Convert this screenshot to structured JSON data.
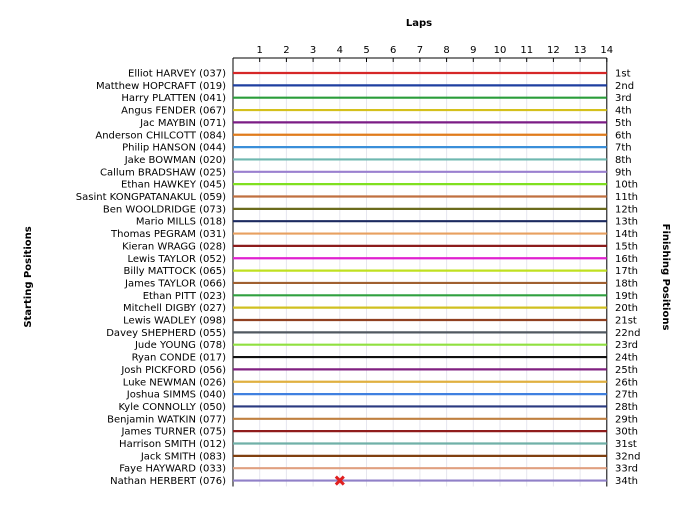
{
  "chart_data": {
    "type": "line",
    "title": "",
    "xlabel": "Laps",
    "ylabel_left": "Starting Positions",
    "ylabel_right": "Finishing Positions",
    "laps": [
      1,
      2,
      3,
      4,
      5,
      6,
      7,
      8,
      9,
      10,
      11,
      12,
      13,
      14
    ],
    "finishing_labels": [
      "1st",
      "2nd",
      "3rd",
      "4th",
      "5th",
      "6th",
      "7th",
      "8th",
      "9th",
      "10th",
      "11th",
      "12th",
      "13th",
      "14th",
      "15th",
      "16th",
      "17th",
      "18th",
      "19th",
      "20th",
      "21st",
      "22nd",
      "23rd",
      "24th",
      "25th",
      "26th",
      "27th",
      "28th",
      "29th",
      "30th",
      "31st",
      "32nd",
      "33rd",
      "34th"
    ],
    "retirement_marker": {
      "lap": 4,
      "position": 34
    },
    "series": [
      {
        "name": "Elliot HARVEY (037)",
        "color": "#d62728",
        "positions": [
          1,
          1,
          1,
          1,
          1,
          1,
          1,
          1,
          1,
          1,
          1,
          1,
          1,
          1,
          1
        ]
      },
      {
        "name": "Matthew HOPCRAFT (019)",
        "color": "#1f3fa0",
        "positions": [
          2,
          2,
          2,
          2,
          2,
          2,
          2,
          2,
          2,
          2,
          2,
          2,
          2,
          2,
          2
        ]
      },
      {
        "name": "Harry PLATTEN (041)",
        "color": "#2a9d3a",
        "positions": [
          3,
          3,
          3,
          3,
          3,
          3,
          3,
          3,
          3,
          3,
          3,
          3,
          3,
          3,
          3
        ]
      },
      {
        "name": "Angus FENDER (067)",
        "color": "#d4c01c",
        "positions": [
          4,
          4,
          4,
          4,
          4,
          4,
          4,
          4,
          4,
          4,
          4,
          4,
          4,
          4,
          4
        ]
      },
      {
        "name": "Jac MAYBIN (071)",
        "color": "#7b1c85",
        "positions": [
          5,
          5,
          5,
          5,
          5,
          5,
          5,
          5,
          5,
          5,
          5,
          5,
          5,
          5,
          5
        ]
      },
      {
        "name": "Anderson CHILCOTT (084)",
        "color": "#e07b1c",
        "positions": [
          6,
          6,
          6,
          6,
          6,
          6,
          6,
          6,
          6,
          6,
          6,
          6,
          6,
          6,
          6
        ]
      },
      {
        "name": "Philip HANSON (044)",
        "color": "#3a8fd9",
        "positions": [
          7,
          7,
          7,
          7,
          7,
          7,
          7,
          7,
          7,
          7,
          7,
          7,
          7,
          7,
          7
        ]
      },
      {
        "name": "Jake BOWMAN (020)",
        "color": "#6fb8b0",
        "positions": [
          8,
          8,
          8,
          8,
          8,
          8,
          8,
          8,
          8,
          8,
          8,
          8,
          8,
          8,
          8
        ]
      },
      {
        "name": "Callum BRADSHAW (025)",
        "color": "#9a7fcf",
        "positions": [
          9,
          9,
          9,
          9,
          9,
          9,
          9,
          9,
          9,
          9,
          9,
          9,
          9,
          9,
          9
        ]
      },
      {
        "name": "Ethan HAWKEY (045)",
        "color": "#80e020",
        "positions": [
          10,
          10,
          10,
          10,
          10,
          10,
          10,
          10,
          10,
          10,
          10,
          10,
          10,
          10,
          10
        ]
      },
      {
        "name": "Sasint KONGPATANAKUL (059)",
        "color": "#c07040",
        "positions": [
          11,
          11,
          11,
          11,
          11,
          11,
          11,
          11,
          11,
          11,
          11,
          11,
          11,
          11,
          11
        ]
      },
      {
        "name": "Ben WOOLDRIDGE (073)",
        "color": "#6b6b1c",
        "positions": [
          12,
          12,
          12,
          12,
          12,
          12,
          12,
          12,
          12,
          12,
          12,
          12,
          12,
          12,
          12
        ]
      },
      {
        "name": "Mario MILLS (018)",
        "color": "#1c2a60",
        "positions": [
          13,
          13,
          13,
          13,
          13,
          13,
          13,
          13,
          13,
          13,
          13,
          13,
          13,
          13,
          13
        ]
      },
      {
        "name": "Thomas PEGRAM (031)",
        "color": "#e8a060",
        "positions": [
          14,
          14,
          14,
          14,
          14,
          14,
          14,
          14,
          14,
          14,
          14,
          14,
          14,
          14,
          14
        ]
      },
      {
        "name": "Kieran WRAGG (028)",
        "color": "#8c1c1c",
        "positions": [
          15,
          15,
          15,
          15,
          15,
          15,
          15,
          15,
          15,
          15,
          15,
          15,
          15,
          15,
          15
        ]
      },
      {
        "name": "Lewis TAYLOR (052)",
        "color": "#e020d0",
        "positions": [
          16,
          16,
          16,
          16,
          16,
          16,
          16,
          16,
          16,
          16,
          16,
          16,
          16,
          16,
          16
        ]
      },
      {
        "name": "Billy MATTOCK (065)",
        "color": "#c0e020",
        "positions": [
          17,
          17,
          17,
          17,
          17,
          17,
          17,
          17,
          17,
          17,
          17,
          17,
          17,
          17,
          17
        ]
      },
      {
        "name": "James TAYLOR (066)",
        "color": "#a06030",
        "positions": [
          18,
          18,
          18,
          18,
          18,
          18,
          18,
          18,
          18,
          18,
          18,
          18,
          18,
          18,
          18
        ]
      },
      {
        "name": "Ethan PITT (023)",
        "color": "#30a040",
        "positions": [
          19,
          19,
          19,
          19,
          19,
          19,
          19,
          19,
          19,
          19,
          19,
          19,
          19,
          19,
          19
        ]
      },
      {
        "name": "Mitchell DIGBY (027)",
        "color": "#d0c020",
        "positions": [
          20,
          20,
          20,
          20,
          20,
          20,
          20,
          20,
          20,
          20,
          20,
          20,
          20,
          20,
          20
        ]
      },
      {
        "name": "Lewis WADLEY (098)",
        "color": "#904020",
        "positions": [
          21,
          21,
          21,
          21,
          21,
          21,
          21,
          21,
          21,
          21,
          21,
          21,
          21,
          21,
          21
        ]
      },
      {
        "name": "Davey SHEPHERD (055)",
        "color": "#505860",
        "positions": [
          22,
          22,
          22,
          22,
          22,
          22,
          22,
          22,
          22,
          22,
          22,
          22,
          22,
          22,
          22
        ]
      },
      {
        "name": "Jude YOUNG (078)",
        "color": "#90e040",
        "positions": [
          23,
          23,
          23,
          23,
          23,
          23,
          23,
          23,
          23,
          23,
          23,
          23,
          23,
          23,
          23
        ]
      },
      {
        "name": "Ryan CONDE (017)",
        "color": "#101010",
        "positions": [
          24,
          24,
          24,
          24,
          24,
          24,
          24,
          24,
          24,
          24,
          24,
          24,
          24,
          24,
          24
        ]
      },
      {
        "name": "Josh PICKFORD (056)",
        "color": "#802080",
        "positions": [
          25,
          25,
          25,
          25,
          25,
          25,
          25,
          25,
          25,
          25,
          25,
          25,
          25,
          25,
          25
        ]
      },
      {
        "name": "Luke NEWMAN (026)",
        "color": "#e0b040",
        "positions": [
          26,
          26,
          26,
          26,
          26,
          26,
          26,
          26,
          26,
          26,
          26,
          26,
          26,
          26,
          26
        ]
      },
      {
        "name": "Joshua SIMMS (040)",
        "color": "#4080e0",
        "positions": [
          27,
          27,
          27,
          27,
          27,
          27,
          27,
          27,
          27,
          27,
          27,
          27,
          27,
          27,
          27
        ]
      },
      {
        "name": "Kyle CONNOLLY (050)",
        "color": "#2a3a80",
        "positions": [
          28,
          28,
          28,
          28,
          28,
          28,
          28,
          28,
          28,
          28,
          28,
          28,
          28,
          28,
          28
        ]
      },
      {
        "name": "Benjamin WATKIN (077)",
        "color": "#c08040",
        "positions": [
          29,
          29,
          29,
          29,
          29,
          29,
          29,
          29,
          29,
          29,
          29,
          29,
          29,
          29,
          29
        ]
      },
      {
        "name": "James TURNER (075)",
        "color": "#901c1c",
        "positions": [
          30,
          30,
          30,
          30,
          30,
          30,
          30,
          30,
          30,
          30,
          30,
          30,
          30,
          30,
          30
        ]
      },
      {
        "name": "Harrison SMITH (012)",
        "color": "#70b0a8",
        "positions": [
          31,
          31,
          31,
          31,
          31,
          31,
          31,
          31,
          31,
          31,
          31,
          31,
          31,
          31,
          31
        ]
      },
      {
        "name": "Jack SMITH (083)",
        "color": "#804010",
        "positions": [
          32,
          32,
          32,
          32,
          32,
          32,
          32,
          32,
          32,
          32,
          32,
          32,
          32,
          32,
          32
        ]
      },
      {
        "name": "Faye HAYWARD (033)",
        "color": "#e0a080",
        "positions": [
          33,
          33,
          33,
          33,
          33,
          33,
          33,
          33,
          33,
          33,
          33,
          33,
          33,
          33,
          33
        ]
      },
      {
        "name": "Nathan HERBERT (076)",
        "color": "#9080c8",
        "positions": [
          34,
          34,
          34,
          34,
          34,
          34,
          34,
          34,
          34,
          34,
          34,
          34,
          34,
          34,
          34
        ]
      }
    ]
  }
}
